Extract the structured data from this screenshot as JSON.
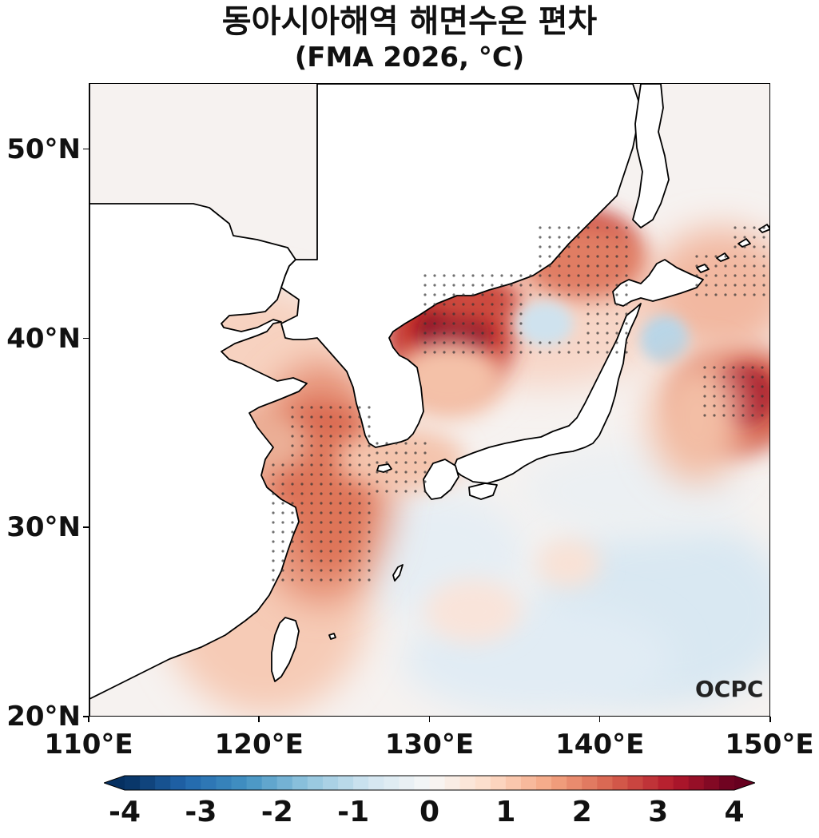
{
  "title": {
    "line1": "동아시아해역 해면수온 편차",
    "line2": "(FMA 2026, °C)"
  },
  "map": {
    "lon_range": [
      110,
      150
    ],
    "lat_range": [
      20,
      53.5
    ],
    "y_ticks": [
      {
        "lat": 50,
        "label": "50°N"
      },
      {
        "lat": 40,
        "label": "40°N"
      },
      {
        "lat": 30,
        "label": "30°N"
      },
      {
        "lat": 20,
        "label": "20°N"
      }
    ],
    "x_ticks": [
      {
        "lon": 110,
        "label": "110°E"
      },
      {
        "lon": 120,
        "label": "120°E"
      },
      {
        "lon": 130,
        "label": "130°E"
      },
      {
        "lon": 140,
        "label": "140°E"
      },
      {
        "lon": 150,
        "label": "150°E"
      }
    ],
    "land_color": "#ffffff",
    "coastline_color": "#000000",
    "logo": "OCPC"
  },
  "colorbar": {
    "min": -4,
    "max": 4,
    "ticks": [
      {
        "value": -4,
        "label": "-4"
      },
      {
        "value": -3,
        "label": "-3"
      },
      {
        "value": -2,
        "label": "-2"
      },
      {
        "value": -1,
        "label": "-1"
      },
      {
        "value": 0,
        "label": "0"
      },
      {
        "value": 1,
        "label": "1"
      },
      {
        "value": 2,
        "label": "2"
      },
      {
        "value": 3,
        "label": "3"
      },
      {
        "value": 4,
        "label": "4"
      }
    ],
    "stops": [
      "#053061",
      "#2166ac",
      "#4393c3",
      "#92c5de",
      "#d1e5f0",
      "#f7f7f7",
      "#fddbc7",
      "#f4a582",
      "#d6604d",
      "#b2182b",
      "#67001f"
    ]
  }
}
